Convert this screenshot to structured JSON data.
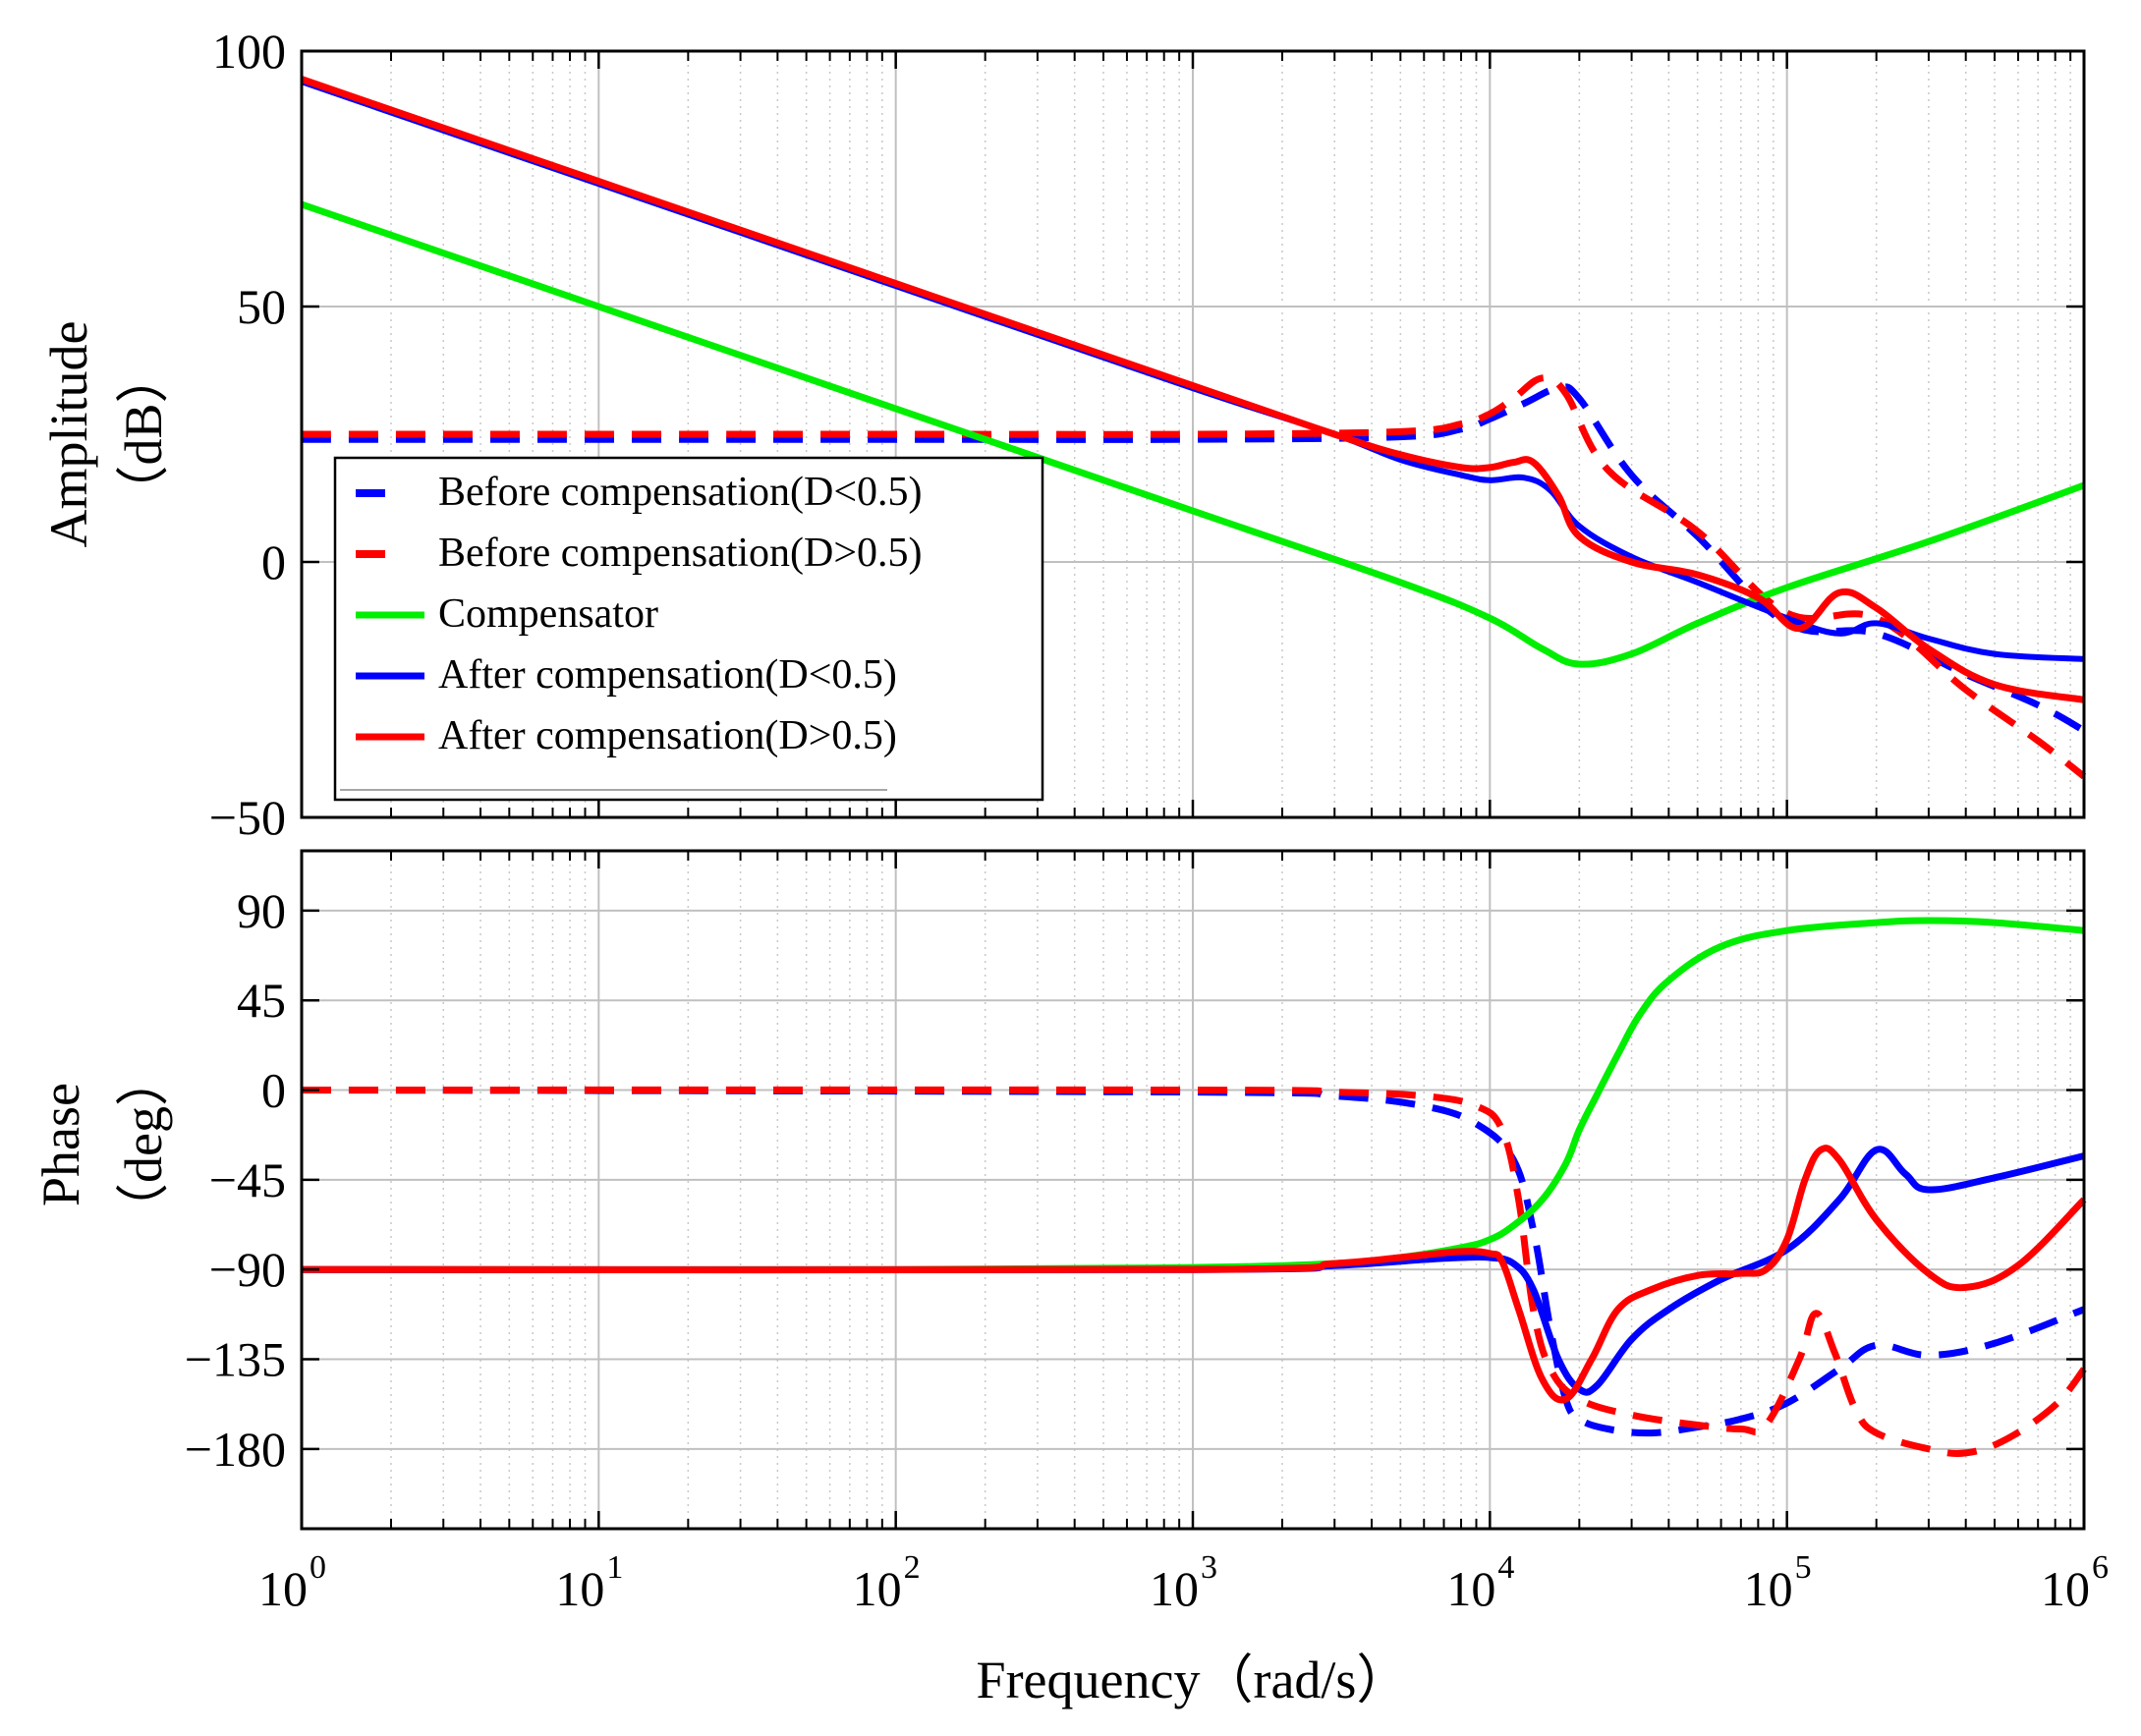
{
  "chart_data": {
    "type": "line",
    "title": "",
    "xlabel": "Frequency（rad/s）",
    "xscale": "log",
    "xlim": [
      1,
      1000000
    ],
    "x_ticks": [
      {
        "base": "10",
        "exp": "0"
      },
      {
        "base": "10",
        "exp": "1"
      },
      {
        "base": "10",
        "exp": "2"
      },
      {
        "base": "10",
        "exp": "3"
      },
      {
        "base": "10",
        "exp": "4"
      },
      {
        "base": "10",
        "exp": "5"
      },
      {
        "base": "10",
        "exp": "6"
      }
    ],
    "grid": true,
    "panels": [
      {
        "name": "magnitude",
        "ylabel_line1": "Amplitude",
        "ylabel_line2": "（dB）",
        "ylim": [
          -50,
          100
        ],
        "yticks": [
          100,
          50,
          0,
          -50
        ],
        "ytick_labels": [
          "100",
          "50",
          "0",
          "−50"
        ],
        "series": [
          {
            "key": "before_lt",
            "x": [
              1,
              100,
              1000,
              5000,
              8000,
              10000,
              13000,
              17000,
              20000,
              30000,
              50000,
              100000,
              200000,
              400000,
              700000,
              1000000
            ],
            "y": [
              24,
              24,
              24,
              24.5,
              26,
              28,
              31,
              34,
              32,
              17,
              5,
              -12,
              -14,
              -22,
              -28,
              -33
            ]
          },
          {
            "key": "before_gt",
            "x": [
              1,
              100,
              1000,
              5000,
              8000,
              10000,
              12000,
              15000,
              18000,
              25000,
              50000,
              100000,
              200000,
              400000,
              700000,
              1000000
            ],
            "y": [
              25,
              25,
              25,
              25.5,
              27,
              29,
              32,
              36,
              33,
              18,
              6,
              -10,
              -11,
              -25,
              -35,
              -42
            ]
          },
          {
            "key": "compensator",
            "x": [
              1,
              10,
              100,
              1000,
              5000,
              10000,
              15000,
              20000,
              30000,
              50000,
              100000,
              300000,
              1000000
            ],
            "y": [
              70,
              50,
              30,
              10,
              -4,
              -11,
              -17,
              -20,
              -18,
              -12,
              -5,
              4,
              15
            ]
          },
          {
            "key": "after_lt",
            "x": [
              1,
              10,
              100,
              1000,
              3000,
              5000,
              8000,
              10000,
              13000,
              16000,
              20000,
              30000,
              50000,
              100000,
              150000,
              200000,
              300000,
              500000,
              1000000
            ],
            "y": [
              94,
              74,
              54,
              34,
              25,
              20,
              17,
              16,
              16.5,
              14,
              7,
              1,
              -4,
              -11,
              -14,
              -12,
              -15,
              -18,
              -19
            ]
          },
          {
            "key": "after_gt",
            "x": [
              1,
              10,
              100,
              1000,
              3000,
              5000,
              8000,
              10000,
              12000,
              14000,
              17000,
              20000,
              30000,
              50000,
              80000,
              110000,
              150000,
              200000,
              300000,
              500000,
              1000000
            ],
            "y": [
              94.5,
              74.5,
              54.5,
              34.5,
              25,
              21,
              18.5,
              18.5,
              19.5,
              19.5,
              13,
              5,
              0,
              -2.5,
              -7,
              -13,
              -6,
              -9,
              -17,
              -24,
              -27
            ]
          }
        ]
      },
      {
        "name": "phase",
        "ylabel_line1": "Phase",
        "ylabel_line2": "（deg）",
        "ylim": [
          -220,
          120
        ],
        "yticks": [
          90,
          45,
          0,
          -45,
          -90,
          -135,
          -180
        ],
        "ytick_labels": [
          "90",
          "45",
          "0",
          "−45",
          "−90",
          "−135",
          "−180"
        ],
        "series": [
          {
            "key": "before_lt",
            "x": [
              1,
              1000,
              3000,
              6000,
              9000,
              12000,
              14000,
              16000,
              18000,
              20000,
              25000,
              35000,
              50000,
              70000,
              100000,
              150000,
              200000,
              300000,
              500000,
              1000000
            ],
            "y": [
              0,
              -1,
              -3,
              -8,
              -17,
              -35,
              -70,
              -120,
              -155,
              -165,
              -170,
              -172,
              -169,
              -165,
              -157,
              -140,
              -128,
              -133,
              -127,
              -110
            ]
          },
          {
            "key": "before_gt",
            "x": [
              1,
              1000,
              3000,
              6000,
              9000,
              11000,
              12500,
              14000,
              16000,
              20000,
              30000,
              50000,
              70000,
              85000,
              110000,
              125000,
              145000,
              170000,
              200000,
              300000,
              400000,
              550000,
              800000,
              1000000
            ],
            "y": [
              0,
              0,
              -1,
              -3,
              -8,
              -20,
              -55,
              -110,
              -140,
              -155,
              -163,
              -168,
              -170,
              -168,
              -135,
              -112,
              -132,
              -160,
              -172,
              -180,
              -182,
              -175,
              -158,
              -140
            ]
          },
          {
            "key": "compensator",
            "x": [
              1,
              100,
              1000,
              3000,
              5000,
              8000,
              10000,
              12000,
              15000,
              18000,
              20000,
              23000,
              27000,
              32000,
              40000,
              60000,
              100000,
              200000,
              300000,
              500000,
              1000000
            ],
            "y": [
              -90,
              -90,
              -89,
              -87,
              -84,
              -79,
              -75,
              -68,
              -55,
              -37,
              -20,
              -2,
              18,
              38,
              55,
              72,
              80,
              84,
              85,
              84,
              80
            ]
          },
          {
            "key": "after_lt",
            "x": [
              1,
              1000,
              3000,
              6000,
              8000,
              10000,
              12000,
              14000,
              17000,
              20000,
              23000,
              30000,
              40000,
              60000,
              100000,
              150000,
              200000,
              250000,
              300000,
              500000,
              1000000
            ],
            "y": [
              -90,
              -90,
              -88,
              -85,
              -84,
              -84,
              -87,
              -100,
              -135,
              -150,
              -148,
              -125,
              -110,
              -95,
              -80,
              -55,
              -30,
              -42,
              -50,
              -44,
              -33
            ]
          },
          {
            "key": "after_gt",
            "x": [
              1,
              1000,
              3000,
              5000,
              8000,
              10000,
              11000,
              12500,
              15000,
              18000,
              22000,
              27000,
              35000,
              50000,
              70000,
              85000,
              100000,
              115000,
              130000,
              150000,
              200000,
              300000,
              400000,
              600000,
              1000000
            ],
            "y": [
              -90,
              -90,
              -87,
              -84,
              -81,
              -82,
              -86,
              -110,
              -145,
              -155,
              -135,
              -110,
              -100,
              -93,
              -92,
              -90,
              -75,
              -45,
              -30,
              -35,
              -65,
              -92,
              -99,
              -88,
              -55
            ]
          }
        ]
      }
    ],
    "legend": {
      "position": "lower-left of magnitude panel",
      "entries": [
        {
          "key": "before_lt",
          "label": "Before compensation(D<0.5)",
          "color": "#0000ff",
          "style": "dashed"
        },
        {
          "key": "before_gt",
          "label": "Before compensation(D>0.5)",
          "color": "#ff0000",
          "style": "dashed"
        },
        {
          "key": "compensator",
          "label": "Compensator",
          "color": "#00ee00",
          "style": "solid"
        },
        {
          "key": "after_lt",
          "label": "After compensation(D<0.5)",
          "color": "#0000ff",
          "style": "solid"
        },
        {
          "key": "after_gt",
          "label": "After compensation(D>0.5)",
          "color": "#ff0000",
          "style": "solid"
        }
      ]
    }
  }
}
